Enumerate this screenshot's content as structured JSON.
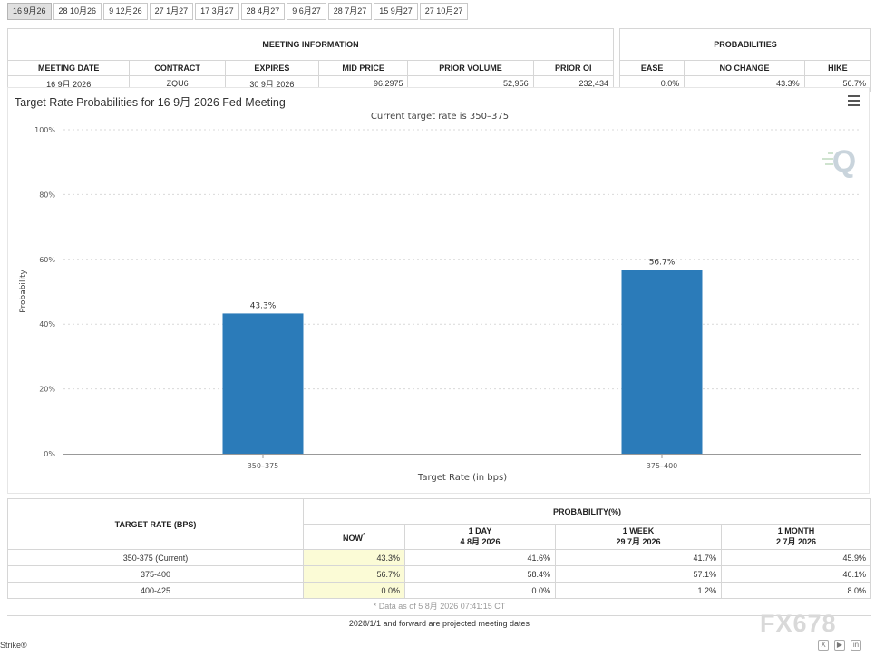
{
  "tabs": [
    "16 9月26",
    "28 10月26",
    "9 12月26",
    "27 1月27",
    "17 3月27",
    "28 4月27",
    "9 6月27",
    "28 7月27",
    "15 9月27",
    "27 10月27"
  ],
  "meeting_info": {
    "caption": "MEETING INFORMATION",
    "headers": [
      "MEETING DATE",
      "CONTRACT",
      "EXPIRES",
      "MID PRICE",
      "PRIOR VOLUME",
      "PRIOR OI"
    ],
    "values": [
      "16 9月 2026",
      "ZQU6",
      "30 9月 2026",
      "96.2975",
      "52,956",
      "232,434"
    ]
  },
  "probabilities": {
    "caption": "PROBABILITIES",
    "headers": [
      "EASE",
      "NO CHANGE",
      "HIKE"
    ],
    "values": [
      "0.0%",
      "43.3%",
      "56.7%"
    ]
  },
  "chart": {
    "title": "Target Rate Probabilities for 16 9月 2026 Fed Meeting"
  },
  "chart_data": {
    "type": "bar",
    "subtitle": "Current target rate is 350–375",
    "xlabel": "Target Rate (in bps)",
    "ylabel": "Probability",
    "categories": [
      "350–375",
      "375–400"
    ],
    "values": [
      43.3,
      56.7
    ],
    "data_labels": [
      "43.3%",
      "56.7%"
    ],
    "ylim": [
      0,
      100
    ],
    "yticks": [
      "0%",
      "20%",
      "40%",
      "60%",
      "80%",
      "100%"
    ],
    "grid": true,
    "bar_color": "#2b7bb9"
  },
  "prob_table": {
    "target_header": "TARGET RATE (BPS)",
    "prob_header": "PROBABILITY(%)",
    "col_now": "NOW",
    "col_now_mark": "*",
    "col_1day": "1 DAY",
    "col_1day_date": "4 8月 2026",
    "col_1week": "1 WEEK",
    "col_1week_date": "29 7月 2026",
    "col_1month": "1 MONTH",
    "col_1month_date": "2 7月 2026",
    "rows": [
      {
        "rate": "350-375 (Current)",
        "now": "43.3%",
        "d1": "41.6%",
        "w1": "41.7%",
        "m1": "45.9%"
      },
      {
        "rate": "375-400",
        "now": "56.7%",
        "d1": "58.4%",
        "w1": "57.1%",
        "m1": "46.1%"
      },
      {
        "rate": "400-425",
        "now": "0.0%",
        "d1": "0.0%",
        "w1": "1.2%",
        "m1": "8.0%"
      }
    ]
  },
  "footnote_data_as_of": "* Data as of 5 8月 2026 07:41:15 CT",
  "footnote_projected": "2028/1/1 and forward are projected meeting dates",
  "credit": "Strike®",
  "watermark": "FX678"
}
